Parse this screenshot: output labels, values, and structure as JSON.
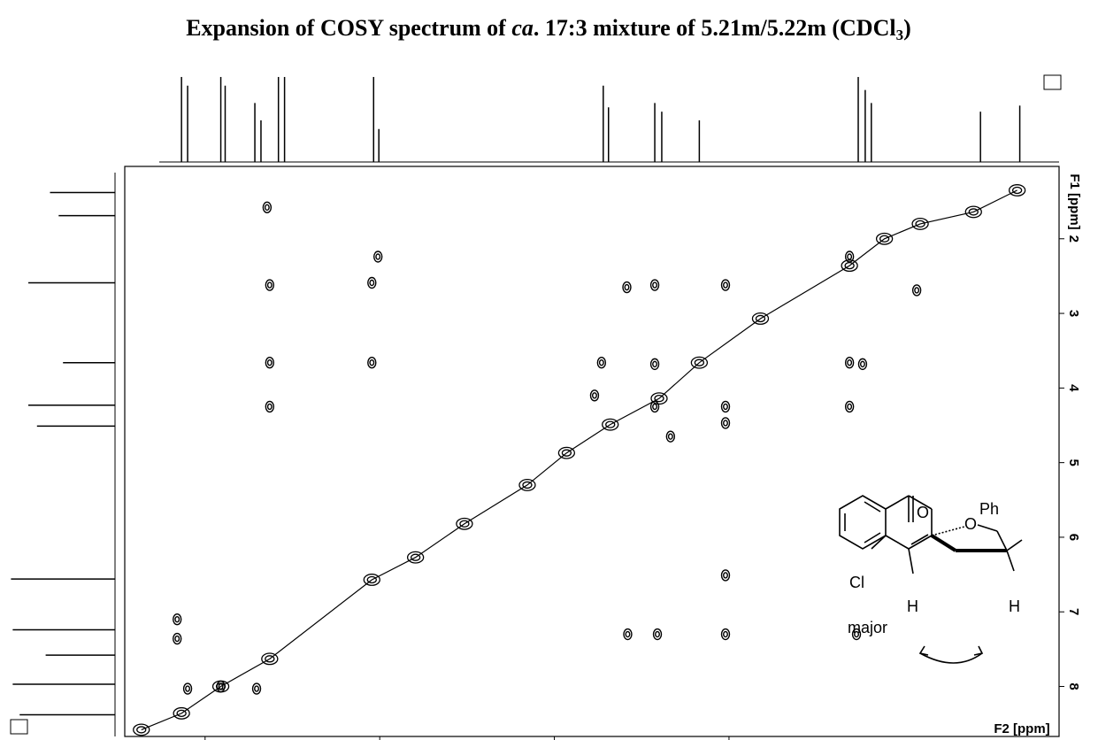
{
  "chart_data": {
    "type": "cosy",
    "title_parts": [
      "Expansion of COSY spectrum of ",
      "ca",
      ". 17:3 mixture of 5.21m/5.22m (CDCl",
      "3",
      ")"
    ],
    "x_label": "F2 [ppm]",
    "y_label": "F1 [ppm]",
    "xlim": [
      8.92,
      -1.78
    ],
    "xticks": [
      8,
      6,
      4,
      2
    ],
    "ylim": [
      1.03,
      8.67
    ],
    "yticks": [
      2,
      3,
      4,
      5,
      6,
      7,
      8
    ],
    "color": "#000000",
    "cross_peaks": {
      "x": [
        7.29,
        6.02,
        7.26,
        6.09,
        3.17,
        2.85,
        2.04,
        0.62,
        -0.15,
        7.26,
        6.09,
        3.46,
        2.85,
        0.62,
        0.47,
        7.26,
        2.85,
        2.04,
        2.04,
        0.62,
        3.54,
        2.67,
        2.04,
        3.16,
        2.82,
        2.04,
        0.54,
        8.32,
        8.32,
        8.2,
        7.82,
        7.41
      ],
      "y": [
        1.58,
        2.24,
        2.62,
        2.59,
        2.65,
        2.62,
        2.62,
        2.24,
        2.69,
        3.66,
        3.66,
        3.66,
        3.68,
        3.66,
        3.68,
        4.25,
        4.25,
        4.25,
        4.47,
        4.25,
        4.1,
        4.65,
        6.51,
        7.3,
        7.3,
        7.3,
        7.3,
        7.1,
        7.36,
        8.03,
        8.0,
        8.03
      ]
    },
    "diagonal_peaks": {
      "x": [
        8.73,
        8.27,
        7.82,
        7.26,
        6.09,
        5.59,
        5.03,
        4.31,
        3.86,
        3.36,
        2.8,
        2.34,
        1.64,
        0.62,
        0.22,
        -0.19,
        -0.8,
        -1.3
      ],
      "y": [
        8.58,
        8.36,
        8.0,
        7.63,
        6.57,
        6.27,
        5.82,
        5.3,
        4.87,
        4.49,
        4.14,
        3.66,
        3.07,
        2.36,
        2.0,
        1.8,
        1.64,
        1.35
      ]
    },
    "f2_projection": {
      "x": [
        8.27,
        8.2,
        7.82,
        7.77,
        7.43,
        7.36,
        7.16,
        7.09,
        6.07,
        6.01,
        3.44,
        3.38,
        2.85,
        2.77,
        2.34,
        0.52,
        0.44,
        0.37,
        -0.88,
        -1.33
      ],
      "values": [
        98,
        88,
        98,
        88,
        68,
        48,
        98,
        98,
        98,
        38,
        88,
        63,
        68,
        58,
        48,
        98,
        83,
        68,
        58,
        65
      ]
    },
    "f1_projection": {
      "y": [
        1.38,
        1.69,
        2.59,
        3.66,
        4.23,
        4.51,
        6.56,
        7.24,
        7.58,
        7.97,
        8.38
      ],
      "values": [
        75,
        65,
        100,
        60,
        100,
        90,
        120,
        118,
        80,
        118,
        110
      ]
    },
    "structure_labels": [
      "O",
      "O",
      "Ph",
      "Cl",
      "H",
      "H"
    ],
    "structure_caption": "major"
  }
}
